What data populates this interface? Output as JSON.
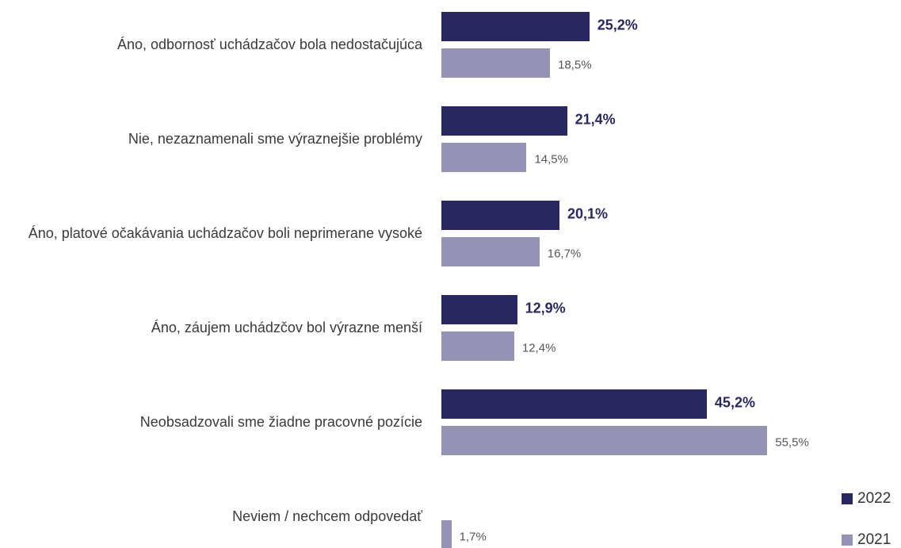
{
  "chart_data": {
    "type": "bar",
    "orientation": "horizontal",
    "categories": [
      "Áno, odbornosť uchádzačov bola nedostačujúca",
      "Nie, nezaznamenali sme výraznejšie problémy",
      "Áno, platové očakávania uchádzačov boli neprimerane vysoké",
      "Áno, záujem uchádzčov bol výrazne menší",
      "Neobsadzovali sme žiadne pracovné pozície",
      "Neviem / nechcem odpovedať"
    ],
    "series": [
      {
        "name": "2022",
        "color": "#2a2660",
        "values": [
          25.2,
          21.4,
          20.1,
          12.9,
          45.2,
          null
        ],
        "value_labels": [
          "25,2%",
          "21,4%",
          "20,1%",
          "12,9%",
          "45,2%",
          null
        ]
      },
      {
        "name": "2021",
        "color": "#9593b5",
        "values": [
          18.5,
          14.5,
          16.7,
          12.4,
          55.5,
          1.7
        ],
        "value_labels": [
          "18,5%",
          "14,5%",
          "16,7%",
          "12,4%",
          "55,5%",
          "1,7%"
        ]
      }
    ],
    "legend": "bottom-right"
  }
}
